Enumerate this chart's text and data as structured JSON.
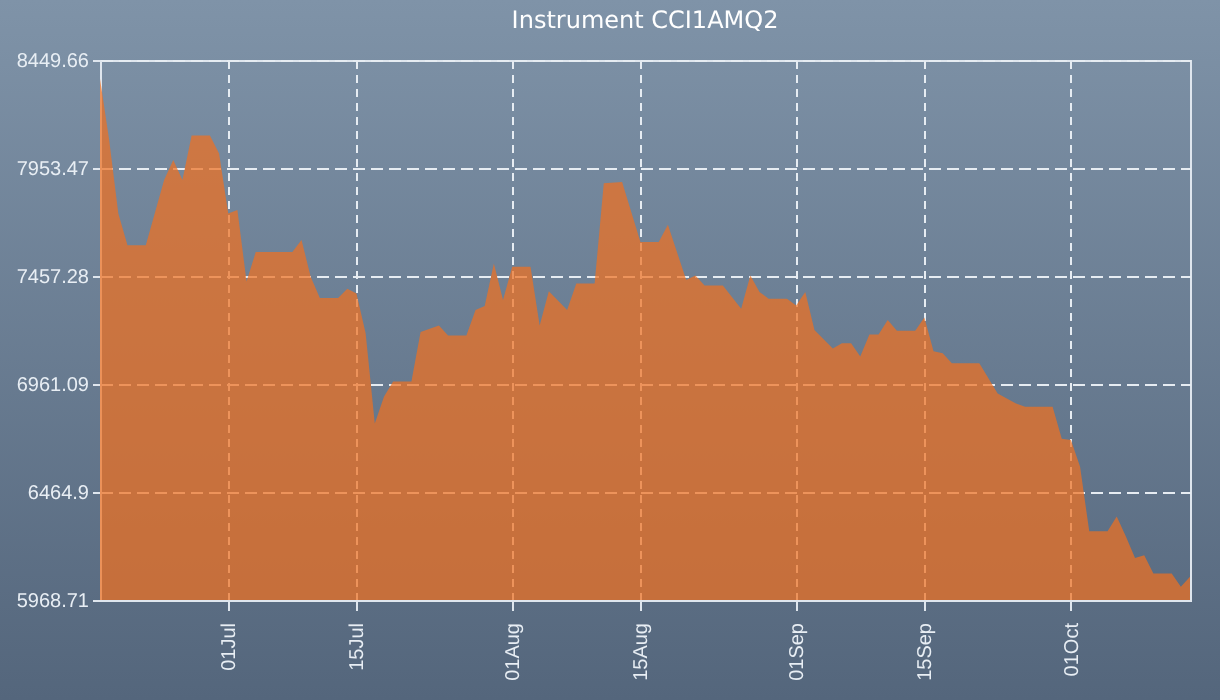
{
  "chart_data": {
    "type": "area",
    "title": "Instrument CCI1AMQ2",
    "x": [
      "--06-17",
      "--06-18",
      "--06-19",
      "--06-20",
      "--06-22",
      "--06-24",
      "--06-25",
      "--06-26",
      "--06-27",
      "--06-29",
      "--06-30",
      "--07-01",
      "--07-02",
      "--07-03",
      "--07-04",
      "--07-07",
      "--07-08",
      "--07-09",
      "--07-10",
      "--07-11",
      "--07-13",
      "--07-14",
      "--07-15",
      "--07-16",
      "--07-17",
      "--07-18",
      "--07-19",
      "--07-21",
      "--07-22",
      "--07-24",
      "--07-25",
      "--07-27",
      "--07-28",
      "--07-29",
      "--07-30",
      "--07-31",
      "--08-01",
      "--08-03",
      "--08-04",
      "--08-05",
      "--08-07",
      "--08-08",
      "--08-10",
      "--08-11",
      "--08-13",
      "--08-14",
      "--08-15",
      "--08-17",
      "--08-18",
      "--08-20",
      "--08-21",
      "--08-22",
      "--08-24",
      "--08-26",
      "--08-27",
      "--08-28",
      "--08-29",
      "--08-31",
      "--09-01",
      "--09-02",
      "--09-03",
      "--09-05",
      "--09-06",
      "--09-07",
      "--09-08",
      "--09-09",
      "--09-10",
      "--09-11",
      "--09-12",
      "--09-14",
      "--09-15",
      "--09-16",
      "--09-17",
      "--09-18",
      "--09-21",
      "--09-23",
      "--09-25",
      "--09-26",
      "--09-29",
      "--09-30",
      "--10-01",
      "--10-02",
      "--10-03",
      "--10-05",
      "--10-06",
      "--10-07",
      "--10-08",
      "--10-09",
      "--10-10",
      "--10-12",
      "--10-13",
      "--10-14"
    ],
    "series": [
      {
        "color": "#f07020",
        "values": [
          8364,
          8082,
          7745,
          7598,
          7598,
          7898,
          7990,
          7898,
          8103,
          8103,
          8020,
          7745,
          7760,
          7432,
          7567,
          7567,
          7567,
          7623,
          7454,
          7356,
          7356,
          7399,
          7377,
          7194,
          6780,
          6903,
          6973,
          6973,
          7200,
          7230,
          7184,
          7184,
          7301,
          7320,
          7515,
          7347,
          7500,
          7500,
          7230,
          7387,
          7301,
          7423,
          7423,
          7883,
          7889,
          7751,
          7614,
          7614,
          7693,
          7439,
          7460,
          7414,
          7414,
          7307,
          7460,
          7384,
          7353,
          7353,
          7322,
          7384,
          7209,
          7124,
          7148,
          7148,
          7087,
          7188,
          7188,
          7255,
          7206,
          7206,
          7267,
          7111,
          7102,
          7056,
          7056,
          6918,
          6872,
          6857,
          6857,
          6710,
          6704,
          6581,
          6284,
          6284,
          6352,
          6260,
          6162,
          6174,
          6091,
          6091,
          6030,
          6076
        ]
      }
    ],
    "xlim": [
      "--06-17",
      "--10-14"
    ],
    "xticks": [
      {
        "value": "--07-01",
        "label": "01Jul"
      },
      {
        "value": "--07-15",
        "label": "15Jul"
      },
      {
        "value": "--08-01",
        "label": "01Aug"
      },
      {
        "value": "--08-15",
        "label": "15Aug"
      },
      {
        "value": "--09-01",
        "label": "01Sep"
      },
      {
        "value": "--09-15",
        "label": "15Sep"
      },
      {
        "value": "--10-01",
        "label": "01Oct"
      }
    ],
    "ylim": [
      5968.71,
      8449.66
    ],
    "yticks": [
      5968.71,
      6464.9,
      6961.09,
      7457.28,
      7953.47,
      8449.66
    ],
    "grid": true
  }
}
